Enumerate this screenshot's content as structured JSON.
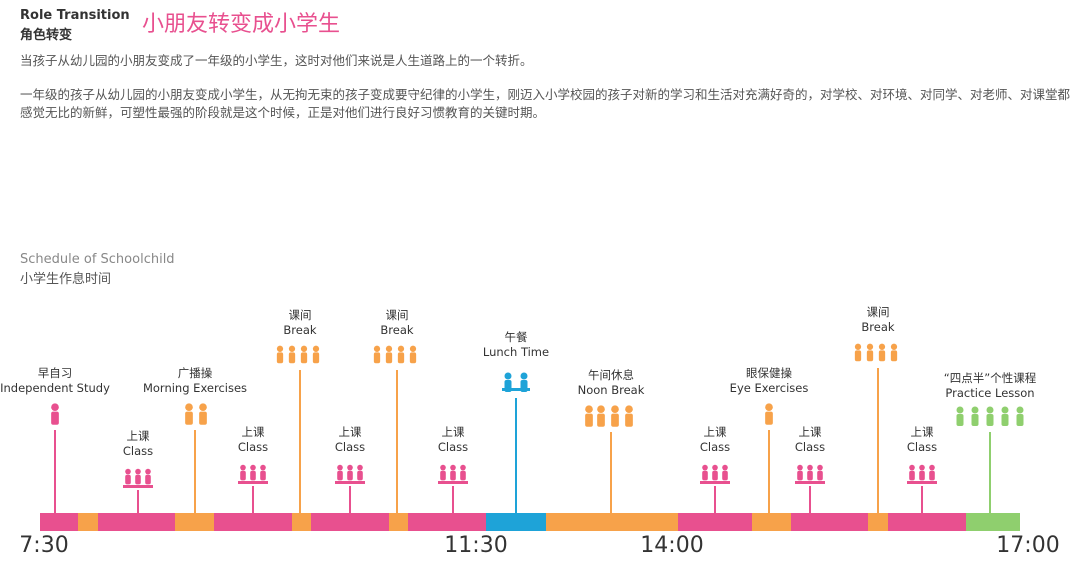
{
  "header": {
    "title_en": "Role Transition",
    "title_zh": "角色转变",
    "headline": "小朋友转变成小学生"
  },
  "paragraphs": [
    "当孩子从幼儿园的小朋友变成了一年级的小学生，这时对他们来说是人生道路上的一个转折。",
    "一年级的孩子从幼儿园的小朋友变成小学生，从无拘无束的孩子变成要守纪律的小学生，刚迈入小学校园的孩子对新的学习和生活对充满好奇的，对学校、对环境、对同学、对老师、对课堂都感觉无比的新鲜，可塑性最强的阶段就是这个时候，正是对他们进行良好习惯教育的关键时期。"
  ],
  "schedule": {
    "title_en": "Schedule of Schoolchild",
    "title_zh": "小学生作息时间",
    "events": [
      {
        "zh": "早自习",
        "en": "Independent Study"
      },
      {
        "zh": "上课",
        "en": "Class"
      },
      {
        "zh": "广播操",
        "en": "Morning Exercises"
      },
      {
        "zh": "上课",
        "en": "Class"
      },
      {
        "zh": "课间",
        "en": "Break"
      },
      {
        "zh": "上课",
        "en": "Class"
      },
      {
        "zh": "课间",
        "en": "Break"
      },
      {
        "zh": "上课",
        "en": "Class"
      },
      {
        "zh": "午餐",
        "en": "Lunch Time"
      },
      {
        "zh": "午间休息",
        "en": "Noon Break"
      },
      {
        "zh": "上课",
        "en": "Class"
      },
      {
        "zh": "眼保健操",
        "en": "Eye Exercises"
      },
      {
        "zh": "上课",
        "en": "Class"
      },
      {
        "zh": "课间",
        "en": "Break"
      },
      {
        "zh": "上课",
        "en": "Class"
      },
      {
        "zh": "“四点半”个性课程",
        "en": "Practice Lesson"
      }
    ],
    "time_labels": [
      "7:30",
      "11:30",
      "14:00",
      "17:00"
    ]
  }
}
